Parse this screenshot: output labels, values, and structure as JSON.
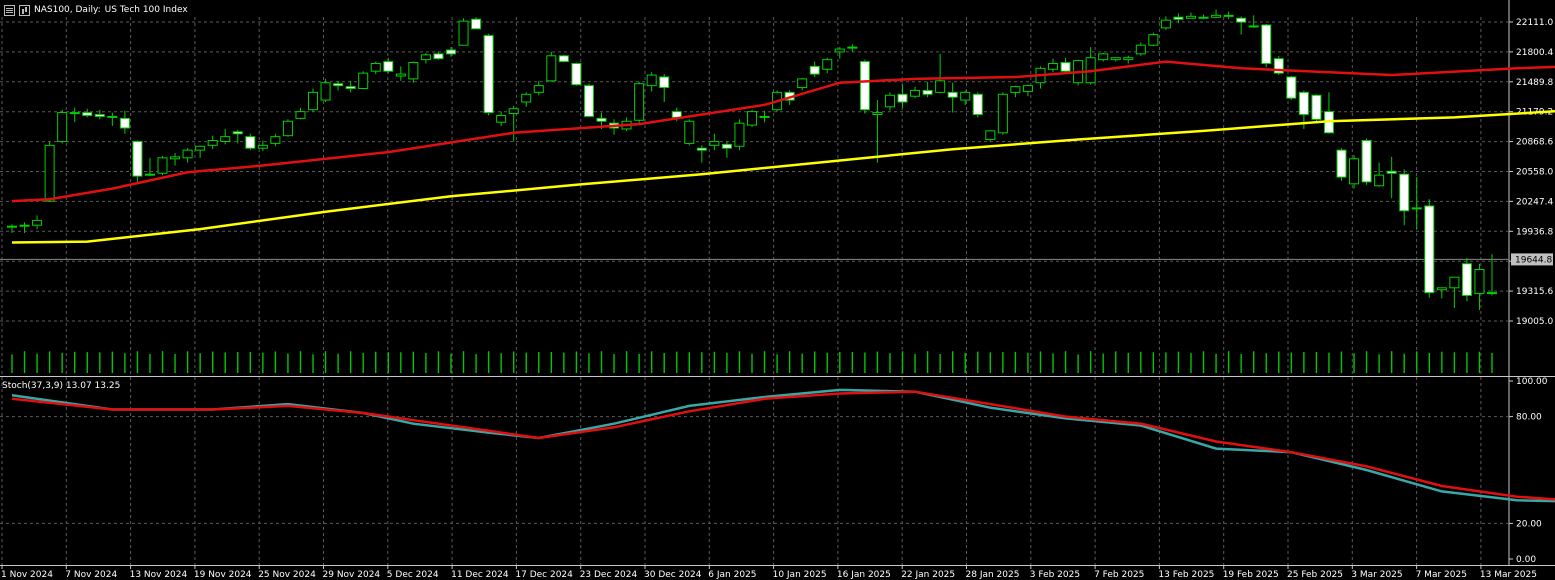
{
  "header": {
    "symbol_label": "NAS100, Daily:",
    "description": "US Tech 100 Index",
    "menu_icon": "menu-icon",
    "chart_icon": "chart-type-icon"
  },
  "stoch_label": "Stoch(37,3,9) 13.07 13.25",
  "current_price": "19644.8",
  "colors": {
    "bull": "#00d000",
    "bear_body": "#ffffff",
    "ma_fast": "#e01010",
    "ma_slow": "#ffff00",
    "volume": "#00c800",
    "stoch_main": "#3aa7a7",
    "stoch_signal": "#e01010",
    "grid": "#5a5a5a",
    "axis_text": "#ffffff"
  },
  "chart_data": [
    {
      "type": "candlestick",
      "title": "NAS100, Daily: US Tech 100 Index",
      "ylim": [
        18850,
        22270
      ],
      "y_ticks": [
        "22111.0",
        "21800.4",
        "21489.8",
        "21179.2",
        "20868.6",
        "20558.0",
        "20247.4",
        "19936.8",
        "19626.2",
        "19315.6",
        "19005.0"
      ],
      "x_tick_labels": [
        "1 Nov 2024",
        "7 Nov 2024",
        "13 Nov 2024",
        "19 Nov 2024",
        "25 Nov 2024",
        "29 Nov 2024",
        "5 Dec 2024",
        "11 Dec 2024",
        "17 Dec 2024",
        "23 Dec 2024",
        "30 Dec 2024",
        "6 Jan 2025",
        "10 Jan 2025",
        "16 Jan 2025",
        "22 Jan 2025",
        "28 Jan 2025",
        "3 Feb 2025",
        "7 Feb 2025",
        "13 Feb 2025",
        "19 Feb 2025",
        "25 Feb 2025",
        "3 Mar 2025",
        "7 Mar 2025",
        "13 Mar 2025"
      ],
      "candles": [
        [
          19980,
          20010,
          19920,
          19990
        ],
        [
          19990,
          20030,
          19920,
          20000
        ],
        [
          20000,
          20100,
          19960,
          20050
        ],
        [
          20250,
          20870,
          20240,
          20830
        ],
        [
          20870,
          21200,
          20850,
          21170
        ],
        [
          21160,
          21220,
          21070,
          21170
        ],
        [
          21170,
          21210,
          21120,
          21140
        ],
        [
          21150,
          21200,
          21100,
          21130
        ],
        [
          21130,
          21170,
          21030,
          21130
        ],
        [
          21110,
          21190,
          20950,
          21010
        ],
        [
          20870,
          20880,
          20450,
          20510
        ],
        [
          20530,
          20700,
          20510,
          20530
        ],
        [
          20540,
          20720,
          20520,
          20700
        ],
        [
          20690,
          20750,
          20620,
          20710
        ],
        [
          20700,
          20800,
          20650,
          20780
        ],
        [
          20780,
          20830,
          20700,
          20820
        ],
        [
          20830,
          20930,
          20790,
          20880
        ],
        [
          20870,
          21000,
          20840,
          20920
        ],
        [
          20970,
          20990,
          20850,
          20950
        ],
        [
          20920,
          20950,
          20780,
          20800
        ],
        [
          20800,
          20880,
          20770,
          20830
        ],
        [
          20850,
          20950,
          20820,
          20920
        ],
        [
          20930,
          21100,
          20920,
          21080
        ],
        [
          21110,
          21220,
          21100,
          21180
        ],
        [
          21200,
          21420,
          21180,
          21380
        ],
        [
          21300,
          21520,
          21280,
          21480
        ],
        [
          21470,
          21500,
          21400,
          21450
        ],
        [
          21440,
          21500,
          21380,
          21420
        ],
        [
          21420,
          21600,
          21410,
          21580
        ],
        [
          21600,
          21700,
          21570,
          21680
        ],
        [
          21700,
          21740,
          21580,
          21600
        ],
        [
          21550,
          21650,
          21500,
          21570
        ],
        [
          21520,
          21700,
          21480,
          21690
        ],
        [
          21720,
          21790,
          21680,
          21770
        ],
        [
          21780,
          21800,
          21720,
          21730
        ],
        [
          21820,
          21850,
          21750,
          21780
        ],
        [
          21870,
          22150,
          21870,
          22120
        ],
        [
          22140,
          22160,
          22040,
          22040
        ],
        [
          21970,
          21990,
          21140,
          21170
        ],
        [
          21070,
          21180,
          21030,
          21140
        ],
        [
          21160,
          21240,
          20870,
          21210
        ],
        [
          21280,
          21380,
          21230,
          21360
        ],
        [
          21380,
          21500,
          21350,
          21450
        ],
        [
          21500,
          21800,
          21490,
          21760
        ],
        [
          21760,
          21770,
          21690,
          21700
        ],
        [
          21680,
          21690,
          21450,
          21460
        ],
        [
          21450,
          21470,
          21130,
          21130
        ],
        [
          21110,
          21170,
          21000,
          21080
        ],
        [
          21060,
          21100,
          20940,
          21010
        ],
        [
          21000,
          21120,
          20980,
          21080
        ],
        [
          21090,
          21490,
          21050,
          21470
        ],
        [
          21450,
          21590,
          21390,
          21560
        ],
        [
          21540,
          21570,
          21280,
          21430
        ],
        [
          21180,
          21220,
          21080,
          21120
        ],
        [
          20850,
          21100,
          20830,
          21080
        ],
        [
          20800,
          20830,
          20650,
          20780
        ],
        [
          20830,
          20950,
          20780,
          20870
        ],
        [
          20840,
          20870,
          20700,
          20800
        ],
        [
          20820,
          21100,
          20780,
          21060
        ],
        [
          21040,
          21200,
          21020,
          21180
        ],
        [
          21130,
          21190,
          21070,
          21130
        ],
        [
          21200,
          21400,
          21180,
          21380
        ],
        [
          21380,
          21400,
          21250,
          21300
        ],
        [
          21430,
          21530,
          21400,
          21520
        ],
        [
          21650,
          21700,
          21540,
          21570
        ],
        [
          21620,
          21740,
          21580,
          21720
        ],
        [
          21800,
          21850,
          21730,
          21830
        ],
        [
          21850,
          21880,
          21800,
          21840
        ],
        [
          21700,
          21720,
          21160,
          21200
        ],
        [
          21150,
          21300,
          20650,
          21170
        ],
        [
          21230,
          21380,
          21190,
          21350
        ],
        [
          21360,
          21460,
          21220,
          21280
        ],
        [
          21340,
          21440,
          21320,
          21400
        ],
        [
          21400,
          21490,
          21330,
          21360
        ],
        [
          21380,
          21780,
          21370,
          21500
        ],
        [
          21380,
          21480,
          21170,
          21330
        ],
        [
          21300,
          21400,
          21250,
          21380
        ],
        [
          21360,
          21380,
          21120,
          21150
        ],
        [
          20890,
          20990,
          20870,
          20980
        ],
        [
          20960,
          21380,
          20940,
          21360
        ],
        [
          21380,
          21450,
          21330,
          21440
        ],
        [
          21390,
          21460,
          21340,
          21450
        ],
        [
          21480,
          21650,
          21420,
          21630
        ],
        [
          21620,
          21730,
          21590,
          21680
        ],
        [
          21690,
          21740,
          21590,
          21600
        ],
        [
          21480,
          21720,
          21450,
          21710
        ],
        [
          21480,
          21850,
          21460,
          21740
        ],
        [
          21720,
          21790,
          21700,
          21780
        ],
        [
          21720,
          21740,
          21700,
          21740
        ],
        [
          21720,
          21760,
          21680,
          21740
        ],
        [
          21780,
          21900,
          21760,
          21870
        ],
        [
          21870,
          22000,
          21860,
          21980
        ],
        [
          22050,
          22170,
          22030,
          22130
        ],
        [
          22160,
          22200,
          22100,
          22140
        ],
        [
          22150,
          22210,
          22150,
          22170
        ],
        [
          22160,
          22190,
          22140,
          22150
        ],
        [
          22160,
          22240,
          22150,
          22180
        ],
        [
          22180,
          22220,
          22140,
          22170
        ],
        [
          22150,
          22170,
          21980,
          22110
        ],
        [
          22070,
          22180,
          22050,
          22060
        ],
        [
          22080,
          22090,
          21640,
          21680
        ],
        [
          21730,
          21760,
          21560,
          21580
        ],
        [
          21540,
          21550,
          21300,
          21320
        ],
        [
          21380,
          21400,
          21000,
          21150
        ],
        [
          21350,
          21360,
          21080,
          21100
        ],
        [
          21180,
          21380,
          20950,
          20960
        ],
        [
          20780,
          20800,
          20460,
          20500
        ],
        [
          20430,
          20730,
          20380,
          20690
        ],
        [
          20880,
          20900,
          20420,
          20450
        ],
        [
          20410,
          20650,
          20400,
          20520
        ],
        [
          20560,
          20710,
          20280,
          20540
        ],
        [
          20530,
          20580,
          20000,
          20150
        ],
        [
          20170,
          20500,
          19960,
          20180
        ],
        [
          20200,
          20270,
          19250,
          19300
        ],
        [
          19330,
          19350,
          19240,
          19350
        ],
        [
          19350,
          19460,
          19140,
          19460
        ],
        [
          19600,
          19660,
          19210,
          19270
        ],
        [
          19290,
          19600,
          19120,
          19540
        ],
        [
          19290,
          19700,
          19270,
          19300
        ]
      ],
      "ma_fast": [
        [
          0,
          20250
        ],
        [
          3,
          20270
        ],
        [
          8,
          20380
        ],
        [
          14,
          20550
        ],
        [
          20,
          20620
        ],
        [
          30,
          20760
        ],
        [
          40,
          20960
        ],
        [
          50,
          21050
        ],
        [
          60,
          21250
        ],
        [
          66,
          21480
        ],
        [
          72,
          21520
        ],
        [
          80,
          21540
        ],
        [
          86,
          21600
        ],
        [
          92,
          21700
        ],
        [
          98,
          21630
        ],
        [
          110,
          21560
        ],
        [
          120,
          21630
        ],
        [
          130,
          21680
        ],
        [
          140,
          21760
        ],
        [
          150,
          21840
        ],
        [
          160,
          21880
        ],
        [
          168,
          21920
        ],
        [
          176,
          21870
        ],
        [
          184,
          21790
        ],
        [
          190,
          21700
        ],
        [
          196,
          21560
        ],
        [
          202,
          21350
        ],
        [
          208,
          21100
        ],
        [
          214,
          20800
        ]
      ],
      "ma_slow": [
        [
          0,
          19820
        ],
        [
          6,
          19830
        ],
        [
          15,
          19960
        ],
        [
          25,
          20140
        ],
        [
          35,
          20300
        ],
        [
          45,
          20420
        ],
        [
          55,
          20530
        ],
        [
          65,
          20660
        ],
        [
          75,
          20790
        ],
        [
          85,
          20890
        ],
        [
          95,
          20980
        ],
        [
          105,
          21080
        ],
        [
          115,
          21120
        ],
        [
          125,
          21200
        ],
        [
          135,
          21260
        ],
        [
          145,
          21290
        ],
        [
          155,
          21360
        ],
        [
          165,
          21400
        ],
        [
          175,
          21440
        ],
        [
          185,
          21460
        ],
        [
          195,
          21420
        ],
        [
          205,
          21340
        ],
        [
          214,
          21180
        ]
      ],
      "volume_labels": [
        "19005.0"
      ]
    },
    {
      "type": "line",
      "title": "Stoch(37,3,9) 13.07 13.25",
      "ylim": [
        0,
        100
      ],
      "y_ticks": [
        "100.00",
        "80.00",
        "20.00",
        "0.00"
      ],
      "series": [
        {
          "name": "main",
          "values": [
            [
              0,
              92
            ],
            [
              8,
              84
            ],
            [
              16,
              84
            ],
            [
              22,
              87
            ],
            [
              28,
              82
            ],
            [
              32,
              76
            ],
            [
              38,
              71
            ],
            [
              42,
              68
            ],
            [
              48,
              76
            ],
            [
              54,
              86
            ],
            [
              60,
              91
            ],
            [
              66,
              95
            ],
            [
              72,
              94
            ],
            [
              78,
              85
            ],
            [
              84,
              79
            ],
            [
              90,
              75
            ],
            [
              96,
              62
            ],
            [
              102,
              60
            ],
            [
              108,
              50
            ],
            [
              114,
              38
            ],
            [
              120,
              33
            ],
            [
              126,
              32
            ],
            [
              132,
              36
            ],
            [
              138,
              52
            ],
            [
              144,
              66
            ],
            [
              150,
              64
            ],
            [
              156,
              62
            ],
            [
              162,
              68
            ],
            [
              168,
              78
            ],
            [
              174,
              86
            ],
            [
              180,
              93
            ],
            [
              186,
              88
            ],
            [
              192,
              69
            ],
            [
              198,
              42
            ],
            [
              204,
              22
            ],
            [
              210,
              13
            ],
            [
              214,
              13
            ]
          ]
        },
        {
          "name": "signal",
          "values": [
            [
              0,
              90
            ],
            [
              8,
              84
            ],
            [
              16,
              84
            ],
            [
              22,
              86
            ],
            [
              28,
              82
            ],
            [
              32,
              78
            ],
            [
              38,
              72
            ],
            [
              42,
              68
            ],
            [
              48,
              74
            ],
            [
              54,
              83
            ],
            [
              60,
              90
            ],
            [
              66,
              93
            ],
            [
              72,
              94
            ],
            [
              78,
              87
            ],
            [
              84,
              80
            ],
            [
              90,
              76
            ],
            [
              96,
              66
            ],
            [
              102,
              60
            ],
            [
              108,
              52
            ],
            [
              114,
              41
            ],
            [
              120,
              35
            ],
            [
              126,
              32
            ],
            [
              132,
              35
            ],
            [
              138,
              48
            ],
            [
              144,
              62
            ],
            [
              150,
              64
            ],
            [
              156,
              61
            ],
            [
              162,
              66
            ],
            [
              168,
              75
            ],
            [
              174,
              83
            ],
            [
              180,
              90
            ],
            [
              186,
              89
            ],
            [
              192,
              73
            ],
            [
              198,
              46
            ],
            [
              204,
              26
            ],
            [
              210,
              15
            ],
            [
              214,
              13
            ]
          ]
        }
      ]
    }
  ]
}
